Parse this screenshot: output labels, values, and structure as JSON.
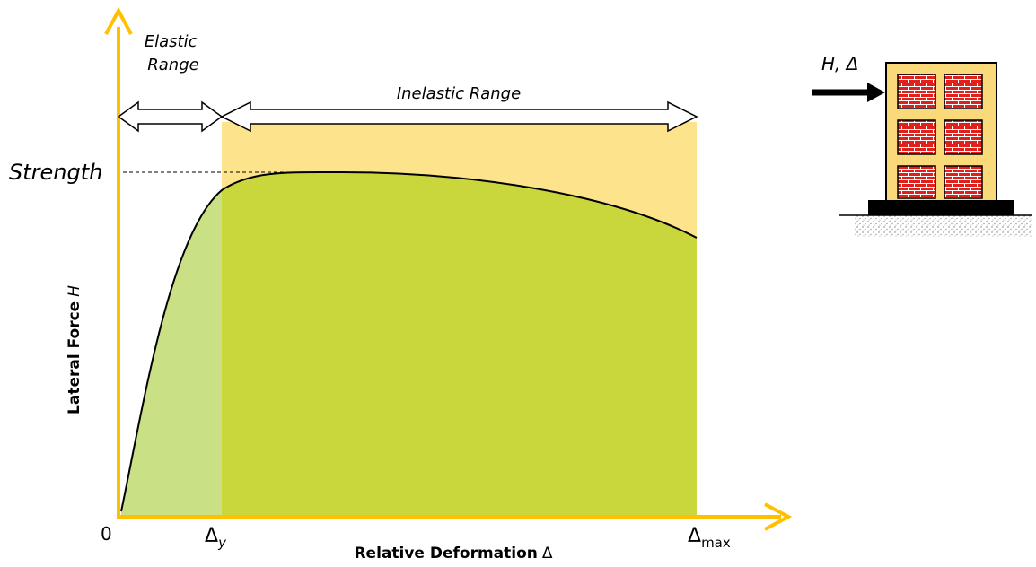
{
  "elastic_range": {
    "lines": [
      "Elastic",
      "Range"
    ]
  },
  "inelastic_range": "Inelastic Range",
  "strength": "Strength",
  "y_axis_label": {
    "text": "Lateral Force",
    "variable": "H"
  },
  "x_axis_label": {
    "text": "Relative Deformation",
    "symbol": "Δ"
  },
  "origin": "0",
  "yield_deformation": {
    "symbol": "Δ",
    "subscript": "y"
  },
  "max_deformation": {
    "symbol": "Δ",
    "subscript": "max"
  },
  "load_label": "H, Δ"
}
